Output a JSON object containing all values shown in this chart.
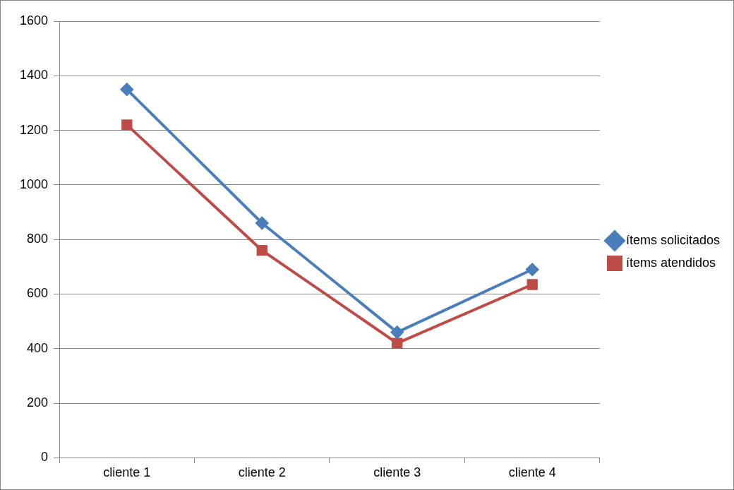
{
  "chart_data": {
    "type": "line",
    "categories": [
      "cliente 1",
      "cliente 2",
      "cliente 3",
      "cliente 4"
    ],
    "series": [
      {
        "name": "ítems solicitados",
        "color": "#4a7ebb",
        "marker": "diamond",
        "values": [
          1350,
          860,
          460,
          690
        ]
      },
      {
        "name": "ítems atendidos",
        "color": "#be4b48",
        "marker": "square",
        "values": [
          1220,
          760,
          420,
          635
        ]
      }
    ],
    "ylim": [
      0,
      1600
    ],
    "yticks": [
      0,
      200,
      400,
      600,
      800,
      1000,
      1200,
      1400,
      1600
    ],
    "grid": "y",
    "legend": "right",
    "line_style": "solid"
  }
}
